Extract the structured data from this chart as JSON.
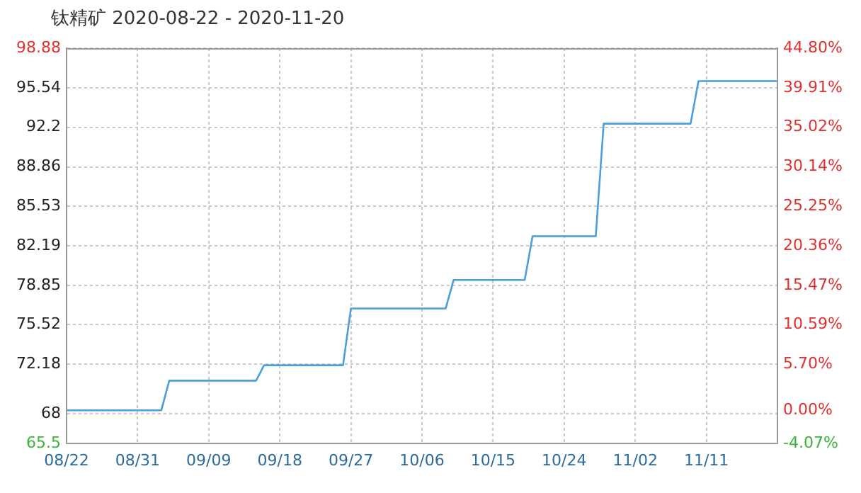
{
  "chart_data": {
    "type": "line",
    "title": "钛精矿 2020-08-22 - 2020-11-20",
    "x": [
      "2020-08-22",
      "2020-09-03",
      "2020-09-04",
      "2020-09-15",
      "2020-09-16",
      "2020-09-26",
      "2020-09-27",
      "2020-10-09",
      "2020-10-10",
      "2020-10-19",
      "2020-10-20",
      "2020-10-28",
      "2020-10-29",
      "2020-11-09",
      "2020-11-10",
      "2020-11-20"
    ],
    "series": [
      {
        "color": "#4a9fd8",
        "values": [
          68.3,
          68.3,
          70.8,
          70.8,
          72.1,
          72.1,
          76.9,
          76.9,
          79.3,
          79.3,
          83.0,
          83.0,
          92.5,
          92.5,
          96.1,
          96.1
        ]
      }
    ],
    "xlim": [
      "2020-08-22",
      "2020-11-20"
    ],
    "xticks": [
      {
        "value": "2020-08-22",
        "label": "08/22"
      },
      {
        "value": "2020-08-31",
        "label": "08/31"
      },
      {
        "value": "2020-09-09",
        "label": "09/09"
      },
      {
        "value": "2020-09-18",
        "label": "09/18"
      },
      {
        "value": "2020-09-27",
        "label": "09/27"
      },
      {
        "value": "2020-10-06",
        "label": "10/06"
      },
      {
        "value": "2020-10-15",
        "label": "10/15"
      },
      {
        "value": "2020-10-24",
        "label": "10/24"
      },
      {
        "value": "2020-11-02",
        "label": "11/02"
      },
      {
        "value": "2020-11-11",
        "label": "11/11"
      }
    ],
    "ylim": [
      65.5,
      98.88
    ],
    "yticks": [
      65.5,
      68,
      72.18,
      75.52,
      78.85,
      82.19,
      85.53,
      88.86,
      92.2,
      95.54,
      98.88
    ],
    "y2lim": [
      -4.07,
      44.8
    ],
    "y2ticks": [
      {
        "value": -4.07,
        "label": "-4.07%"
      },
      {
        "value": 0,
        "label": "0.00%"
      },
      {
        "value": 5.7,
        "label": "5.70%"
      },
      {
        "value": 10.59,
        "label": "10.59%"
      },
      {
        "value": 15.47,
        "label": "15.47%"
      },
      {
        "value": 20.36,
        "label": "20.36%"
      },
      {
        "value": 25.25,
        "label": "25.25%"
      },
      {
        "value": 30.14,
        "label": "30.14%"
      },
      {
        "value": 35.02,
        "label": "35.02%"
      },
      {
        "value": 39.91,
        "label": "39.91%"
      },
      {
        "value": 44.8,
        "label": "44.80%"
      }
    ],
    "grid": true,
    "legend": false,
    "marker": "none",
    "line_style": "solid"
  }
}
